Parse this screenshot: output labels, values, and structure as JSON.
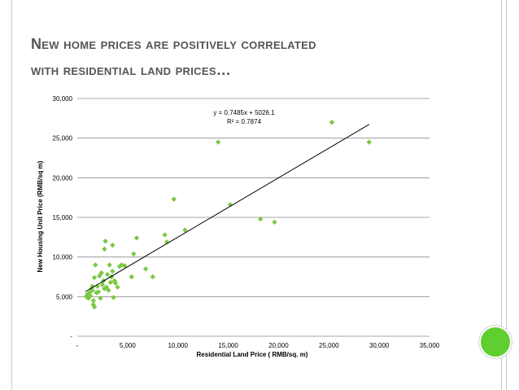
{
  "slide": {
    "title_line1": "New home prices are positively correlated",
    "title_line2": "with residential land prices…"
  },
  "colors": {
    "marker": "#7ac943",
    "trendline": "#000000",
    "gridline": "#8c8c8c",
    "badge": "#5fcf2f"
  },
  "chart_data": {
    "type": "scatter",
    "xlabel": "Residential Land Price ( RMB/sq. m)",
    "ylabel": "New Housing Unit Price (RMB/sq m)",
    "xlim": [
      0,
      35000
    ],
    "ylim": [
      0,
      30000
    ],
    "x_tick_labels": [
      "-",
      "5,000",
      "10,000",
      "15,000",
      "20,000",
      "25,000",
      "30,000",
      "35,000"
    ],
    "y_tick_labels": [
      "-",
      "5,000",
      "10,000",
      "15,000",
      "20,000",
      "25,000",
      "30,000"
    ],
    "grid": "horizontal",
    "trendline": {
      "slope": 0.7485,
      "intercept": 5026.1,
      "x_range": [
        800,
        29000
      ],
      "equation": "y = 0.7485x + 5026.1",
      "r_squared": "R² = 0.7874"
    },
    "points": [
      [
        900,
        5000
      ],
      [
        1000,
        5300
      ],
      [
        1100,
        4800
      ],
      [
        1200,
        5500
      ],
      [
        1300,
        5100
      ],
      [
        1400,
        6000
      ],
      [
        1500,
        5800
      ],
      [
        1500,
        6300
      ],
      [
        1600,
        4500
      ],
      [
        1600,
        4000
      ],
      [
        1700,
        3700
      ],
      [
        1700,
        7400
      ],
      [
        1800,
        9000
      ],
      [
        1900,
        5500
      ],
      [
        2000,
        6300
      ],
      [
        2100,
        5600
      ],
      [
        2200,
        7600
      ],
      [
        2300,
        4800
      ],
      [
        2400,
        8000
      ],
      [
        2500,
        6500
      ],
      [
        2600,
        7000
      ],
      [
        2700,
        6000
      ],
      [
        2700,
        11000
      ],
      [
        2800,
        12000
      ],
      [
        2900,
        6200
      ],
      [
        3000,
        7800
      ],
      [
        3100,
        5800
      ],
      [
        3200,
        9000
      ],
      [
        3300,
        6800
      ],
      [
        3400,
        7500
      ],
      [
        3500,
        8200
      ],
      [
        3500,
        11500
      ],
      [
        3600,
        4900
      ],
      [
        3700,
        7000
      ],
      [
        3800,
        6700
      ],
      [
        4000,
        6200
      ],
      [
        4200,
        8800
      ],
      [
        4400,
        9000
      ],
      [
        4700,
        8900
      ],
      [
        5400,
        7500
      ],
      [
        5600,
        10400
      ],
      [
        5900,
        12400
      ],
      [
        6800,
        8500
      ],
      [
        7500,
        7500
      ],
      [
        8700,
        12800
      ],
      [
        8900,
        11900
      ],
      [
        9600,
        17300
      ],
      [
        10700,
        13400
      ],
      [
        14000,
        24500
      ],
      [
        15200,
        16600
      ],
      [
        18200,
        14800
      ],
      [
        19600,
        14400
      ],
      [
        25300,
        27000
      ],
      [
        29000,
        24500
      ]
    ]
  }
}
